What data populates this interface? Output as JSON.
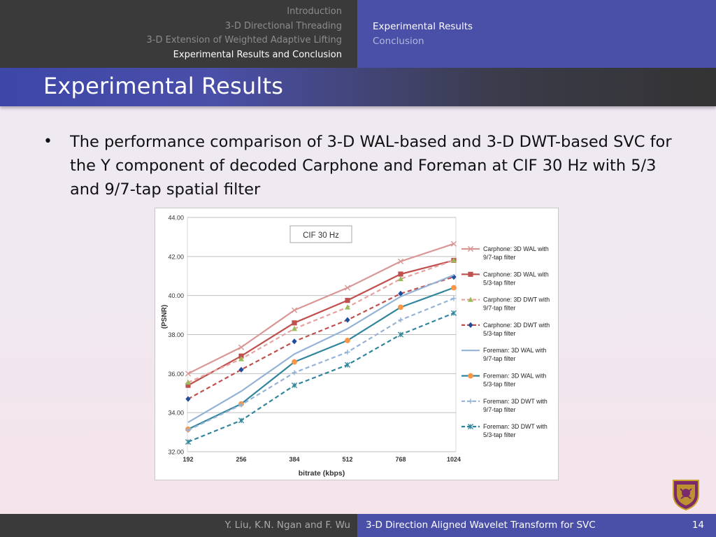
{
  "nav": {
    "sections": [
      {
        "label": "Introduction",
        "active": false
      },
      {
        "label": "3-D Directional Threading",
        "active": false
      },
      {
        "label": "3-D Extension of Weighted Adaptive Lifting",
        "active": false
      },
      {
        "label": "Experimental Results and Conclusion",
        "active": true
      }
    ],
    "subsections": [
      {
        "label": "Experimental Results",
        "active": true
      },
      {
        "label": "Conclusion",
        "active": false
      }
    ]
  },
  "slide": {
    "title": "Experimental Results",
    "bullet": "The performance comparison of 3-D WAL-based and 3-D DWT-based SVC for the Y component of decoded Carphone and Foreman at CIF 30 Hz with 5/3 and 9/7-tap spatial filter"
  },
  "footer": {
    "authors": "Y. Liu, K.N. Ngan and F. Wu",
    "talk_title": "3-D Direction Aligned Wavelet Transform for SVC",
    "page": "14"
  },
  "logo": {
    "icon": "university-crest-icon"
  },
  "chart_data": {
    "type": "line",
    "title": "CIF 30 Hz",
    "xlabel": "bitrate (kbps)",
    "ylabel": "(PSNR)",
    "categories": [
      "192",
      "256",
      "384",
      "512",
      "768",
      "1024"
    ],
    "ylim": [
      32,
      44
    ],
    "yticks": [
      "32.00",
      "34.00",
      "36.00",
      "38.00",
      "40.00",
      "42.00",
      "44.00"
    ],
    "grid": "horizontal",
    "legend_position": "right",
    "series": [
      {
        "name": "Carphone: 3D WAL with 9/7-tap filter",
        "values": [
          36.0,
          37.35,
          39.25,
          40.4,
          41.75,
          42.65
        ],
        "color": "#d99694",
        "dash": "solid",
        "marker": "x"
      },
      {
        "name": "Carphone: 3D WAL with 5/3-tap filter",
        "values": [
          35.4,
          36.9,
          38.6,
          39.75,
          41.1,
          41.8
        ],
        "color": "#c0504d",
        "dash": "solid",
        "marker": "square"
      },
      {
        "name": "Carphone: 3D DWT with 9/7-tap filter",
        "values": [
          35.55,
          36.75,
          38.3,
          39.4,
          40.85,
          41.8
        ],
        "color": "#e6a3a0",
        "dash": "dashed",
        "marker": "triangle"
      },
      {
        "name": "Carphone: 3D DWT with 5/3-tap filter",
        "values": [
          34.7,
          36.2,
          37.65,
          38.75,
          40.1,
          40.95
        ],
        "color": "#c0504d",
        "dash": "dashed",
        "marker": "diamond"
      },
      {
        "name": "Foreman: 3D WAL with 9/7-tap filter",
        "values": [
          33.5,
          35.1,
          37.0,
          38.3,
          39.95,
          41.05
        ],
        "color": "#95b3d7",
        "dash": "solid",
        "marker": "none"
      },
      {
        "name": "Foreman: 3D WAL with 5/3-tap filter",
        "values": [
          33.15,
          34.45,
          36.6,
          37.7,
          39.4,
          40.4
        ],
        "color": "#31859c",
        "dash": "solid",
        "marker": "circle"
      },
      {
        "name": "Foreman: 3D DWT with 9/7-tap filter",
        "values": [
          33.1,
          34.4,
          36.05,
          37.1,
          38.75,
          39.85
        ],
        "color": "#95b3d7",
        "dash": "dashed",
        "marker": "plus"
      },
      {
        "name": "Foreman: 3D DWT with 5/3-tap filter",
        "values": [
          32.5,
          33.6,
          35.4,
          36.45,
          38.0,
          39.1
        ],
        "color": "#31859c",
        "dash": "dashed",
        "marker": "star"
      }
    ]
  }
}
